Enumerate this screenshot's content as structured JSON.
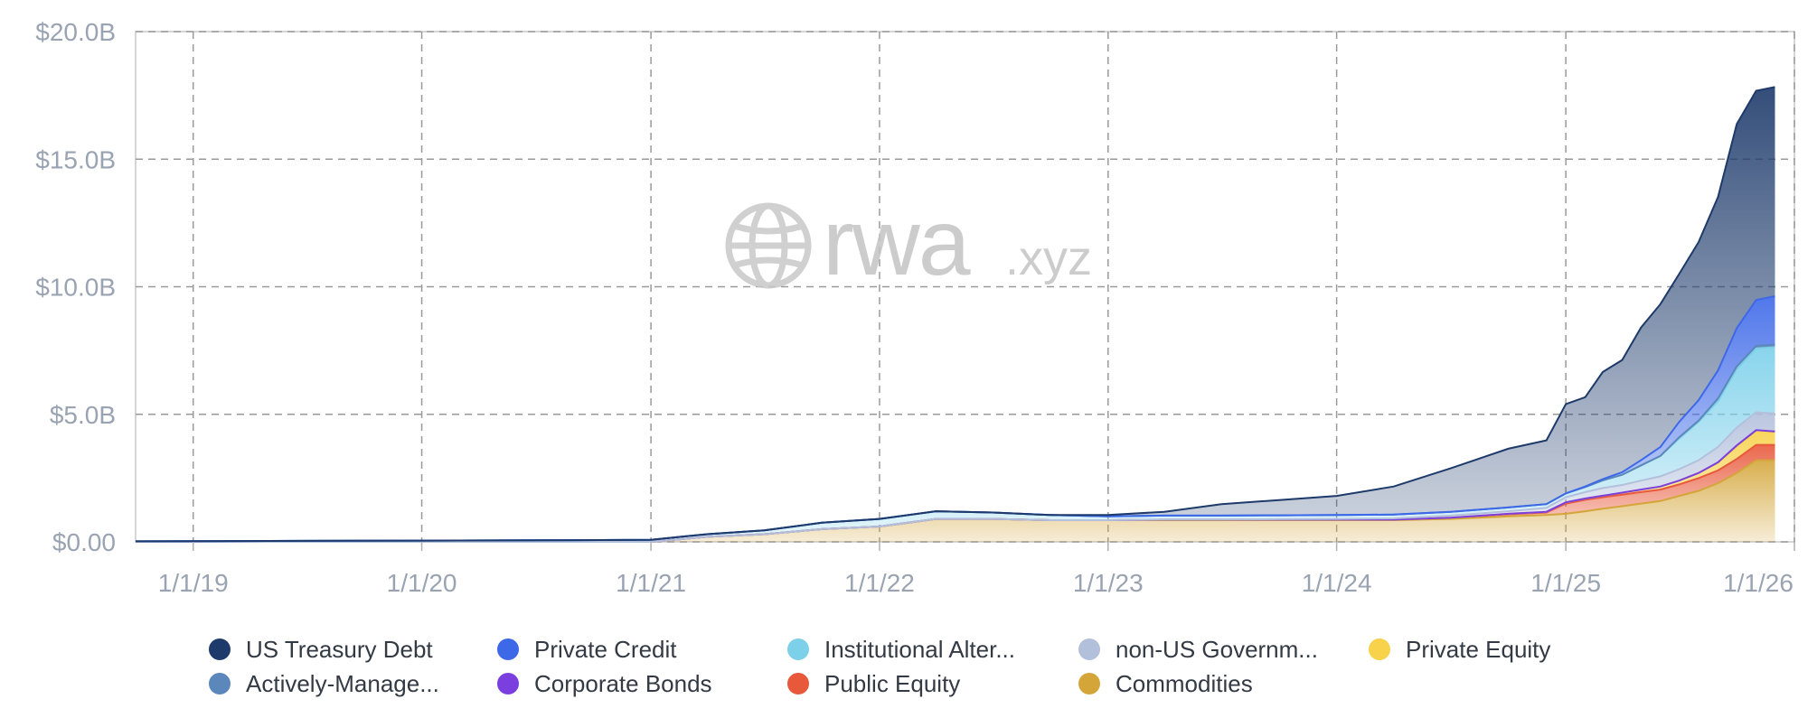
{
  "watermark": {
    "brand": "rwa",
    "suffix": ".xyz",
    "icon": "globe-icon"
  },
  "chart_data": {
    "type": "area",
    "stacked": true,
    "title": "",
    "xlabel": "",
    "ylabel": "",
    "grid": true,
    "legend_position": "bottom",
    "x_ticks": [
      "1/1/19",
      "1/1/20",
      "1/1/21",
      "1/1/22",
      "1/1/23",
      "1/1/24",
      "1/1/25",
      "1/1/26"
    ],
    "y_ticks": [
      "$0.00",
      "$5.0B",
      "$10.0B",
      "$15.0B",
      "$20.0B"
    ],
    "ylim": [
      0,
      20
    ],
    "x": [
      "2018-10-01",
      "2019-01-01",
      "2019-07-01",
      "2020-01-01",
      "2020-07-01",
      "2021-01-01",
      "2021-04-01",
      "2021-07-01",
      "2021-10-01",
      "2022-01-01",
      "2022-04-01",
      "2022-07-01",
      "2022-10-01",
      "2023-01-01",
      "2023-04-01",
      "2023-07-01",
      "2023-10-01",
      "2024-01-01",
      "2024-04-01",
      "2024-07-01",
      "2024-10-01",
      "2024-12-01",
      "2025-01-01",
      "2025-02-01",
      "2025-03-01",
      "2025-04-01",
      "2025-05-01",
      "2025-06-01",
      "2025-07-01",
      "2025-08-01",
      "2025-09-01",
      "2025-10-01",
      "2025-11-01",
      "2025-12-01"
    ],
    "series": [
      {
        "name": "Commodities",
        "color": "#d4a63a",
        "values": [
          0,
          0,
          0,
          0,
          0,
          0,
          0.2,
          0.3,
          0.5,
          0.6,
          0.9,
          0.9,
          0.85,
          0.85,
          0.85,
          0.85,
          0.85,
          0.85,
          0.85,
          0.9,
          1.0,
          1.05,
          1.1,
          1.2,
          1.3,
          1.4,
          1.5,
          1.6,
          1.8,
          2.0,
          2.3,
          2.7,
          3.2,
          3.2
        ]
      },
      {
        "name": "Public Equity",
        "color": "#e8583a",
        "values": [
          0,
          0,
          0,
          0,
          0,
          0,
          0,
          0,
          0,
          0,
          0,
          0,
          0,
          0,
          0.02,
          0.02,
          0.02,
          0.02,
          0.02,
          0.05,
          0.08,
          0.1,
          0.4,
          0.45,
          0.45,
          0.45,
          0.45,
          0.45,
          0.45,
          0.5,
          0.5,
          0.55,
          0.6,
          0.6
        ]
      },
      {
        "name": "Private Equity",
        "color": "#f7d24a",
        "values": [
          0,
          0,
          0,
          0,
          0,
          0,
          0,
          0,
          0,
          0,
          0,
          0,
          0,
          0,
          0,
          0,
          0,
          0,
          0,
          0,
          0.02,
          0.03,
          0.05,
          0.05,
          0.06,
          0.08,
          0.1,
          0.12,
          0.15,
          0.2,
          0.3,
          0.5,
          0.55,
          0.5
        ]
      },
      {
        "name": "Corporate Bonds",
        "color": "#7b3fe0",
        "values": [
          0,
          0,
          0,
          0,
          0,
          0,
          0,
          0,
          0,
          0,
          0,
          0,
          0,
          0,
          0,
          0,
          0,
          0,
          0,
          0,
          0,
          0,
          0,
          0,
          0,
          0,
          0,
          0,
          0,
          0,
          0.02,
          0.03,
          0.03,
          0.03
        ]
      },
      {
        "name": "non-US Government Debt",
        "color": "#b3c0dc",
        "values": [
          0,
          0,
          0,
          0,
          0,
          0,
          0,
          0,
          0,
          0,
          0,
          0,
          0,
          0,
          0.01,
          0.01,
          0.02,
          0.03,
          0.05,
          0.08,
          0.1,
          0.15,
          0.2,
          0.25,
          0.3,
          0.3,
          0.35,
          0.4,
          0.45,
          0.5,
          0.6,
          0.7,
          0.7,
          0.7
        ]
      },
      {
        "name": "Institutional Alternative Funds",
        "color": "#7cd0ea",
        "values": [
          0.02,
          0.03,
          0.04,
          0.05,
          0.06,
          0.08,
          0.1,
          0.15,
          0.25,
          0.3,
          0.3,
          0.25,
          0.2,
          0.15,
          0.15,
          0.15,
          0.15,
          0.15,
          0.15,
          0.15,
          0.15,
          0.15,
          0.15,
          0.2,
          0.3,
          0.4,
          0.6,
          0.8,
          1.2,
          1.5,
          1.8,
          2.3,
          2.5,
          2.6
        ]
      },
      {
        "name": "Actively-Managed Strategies",
        "color": "#5b87ba",
        "values": [
          0,
          0,
          0,
          0,
          0,
          0,
          0,
          0,
          0,
          0,
          0,
          0,
          0,
          0,
          0,
          0,
          0,
          0,
          0,
          0,
          0,
          0,
          0,
          0,
          0,
          0,
          0,
          0,
          0.05,
          0.05,
          0.1,
          0.1,
          0.1,
          0.1
        ]
      },
      {
        "name": "Private Credit",
        "color": "#3d68e8",
        "values": [
          0,
          0,
          0,
          0,
          0,
          0,
          0,
          0,
          0,
          0,
          0,
          0,
          0,
          0,
          0,
          0,
          0,
          0,
          0,
          0,
          0,
          0,
          0,
          0.02,
          0.05,
          0.1,
          0.2,
          0.35,
          0.6,
          0.8,
          1.1,
          1.5,
          1.8,
          1.9
        ]
      },
      {
        "name": "US Treasury Debt",
        "color": "#1d3a6b",
        "values": [
          0,
          0,
          0,
          0,
          0,
          0,
          0,
          0,
          0,
          0,
          0,
          0,
          0,
          0.05,
          0.15,
          0.45,
          0.6,
          0.75,
          1.1,
          1.7,
          2.3,
          2.5,
          3.5,
          3.5,
          4.2,
          4.4,
          5.2,
          5.6,
          5.8,
          6.2,
          6.8,
          8.0,
          8.2,
          8.2
        ]
      }
    ]
  },
  "legend": {
    "items": [
      {
        "name": "US Treasury Debt",
        "label": "US Treasury Debt",
        "color": "#1d3a6b"
      },
      {
        "name": "Private Credit",
        "label": "Private Credit",
        "color": "#3d68e8"
      },
      {
        "name": "Institutional Alternative Funds",
        "label": "Institutional Alter...",
        "color": "#7cd0ea"
      },
      {
        "name": "non-US Government Debt",
        "label": "non-US Governm...",
        "color": "#b3c0dc"
      },
      {
        "name": "Private Equity",
        "label": "Private Equity",
        "color": "#f7d24a"
      },
      {
        "name": "Actively-Managed Strategies",
        "label": "Actively-Manage...",
        "color": "#5b87ba"
      },
      {
        "name": "Corporate Bonds",
        "label": "Corporate Bonds",
        "color": "#7b3fe0"
      },
      {
        "name": "Public Equity",
        "label": "Public Equity",
        "color": "#e8583a"
      },
      {
        "name": "Commodities",
        "label": "Commodities",
        "color": "#d4a63a"
      }
    ]
  }
}
